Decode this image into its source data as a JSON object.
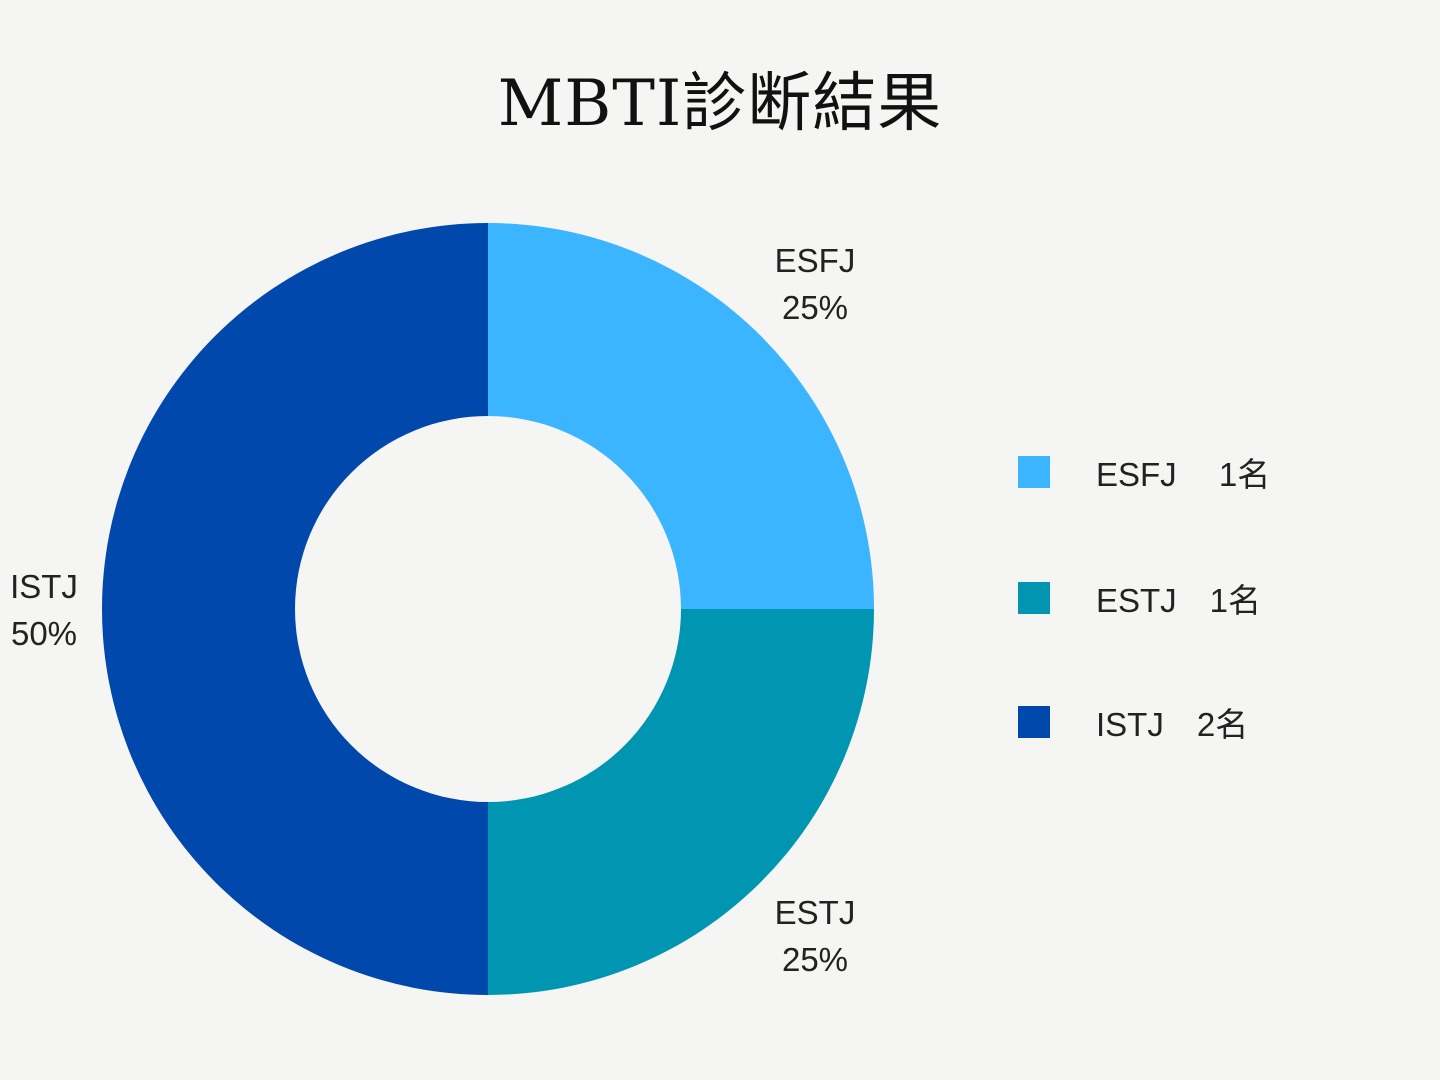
{
  "chart_data": {
    "type": "pie",
    "variant": "donut",
    "title": "MBTI診断結果",
    "categories": [
      "ESFJ",
      "ESTJ",
      "ISTJ"
    ],
    "values": [
      1,
      1,
      2
    ],
    "percent_labels": [
      "25%",
      "25%",
      "50%"
    ],
    "colors": [
      "#3bb5ff",
      "#0096b1",
      "#0048ab"
    ],
    "legend_position": "right",
    "legend": [
      {
        "label": "ESFJ　 1名",
        "color": "#3bb5ff"
      },
      {
        "label": "ESTJ　1名",
        "color": "#0096b1"
      },
      {
        "label": "ISTJ　2名",
        "color": "#0048ab"
      }
    ]
  }
}
